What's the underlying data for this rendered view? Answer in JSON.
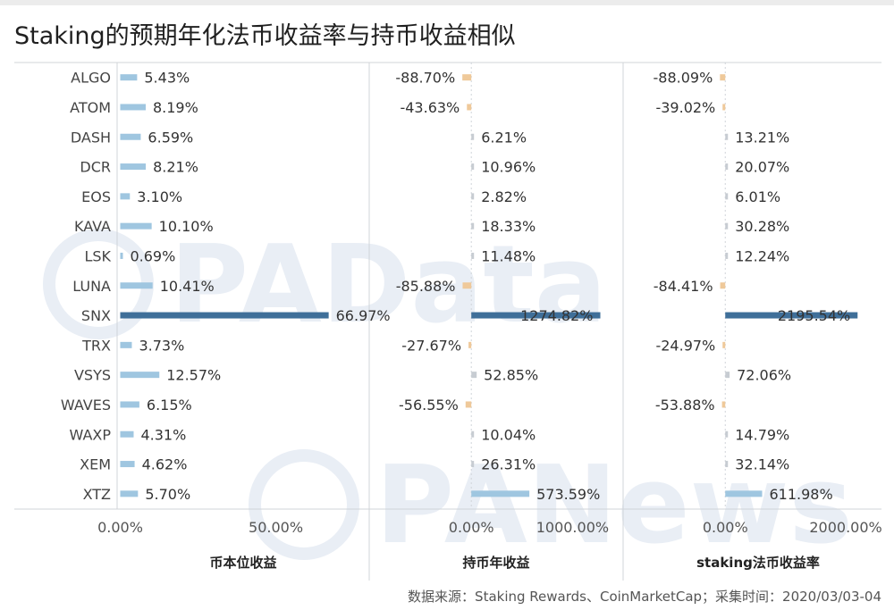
{
  "title": "Staking的预期年化法币收益率与持币收益相似",
  "source": "数据来源：Staking Rewards、CoinMarketCap；采集时间：2020/03/03-04",
  "watermarks": [
    "PAData",
    "PANews"
  ],
  "colors": {
    "positive_bar": "#9fc6e0",
    "negative_bar": "#efc99a",
    "highlight_bar": "#3f6f99",
    "small_bar_gray": "#c7ccd2",
    "grid": "#d0d4d9",
    "text": "#333333"
  },
  "chart_data": {
    "type": "bar",
    "orientation": "horizontal",
    "categories": [
      "ALGO",
      "ATOM",
      "DASH",
      "DCR",
      "EOS",
      "KAVA",
      "LSK",
      "LUNA",
      "SNX",
      "TRX",
      "VSYS",
      "WAVES",
      "WAXP",
      "XEM",
      "XTZ"
    ],
    "panels": [
      {
        "name": "币本位收益",
        "values": [
          5.43,
          8.19,
          6.59,
          8.21,
          3.1,
          10.1,
          0.69,
          10.41,
          66.97,
          3.73,
          12.57,
          6.15,
          4.31,
          4.62,
          5.7
        ],
        "labels": [
          "5.43%",
          "8.19%",
          "6.59%",
          "8.21%",
          "3.10%",
          "10.10%",
          "0.69%",
          "10.41%",
          "66.97%",
          "3.73%",
          "12.57%",
          "6.15%",
          "4.31%",
          "4.62%",
          "5.70%"
        ],
        "ticks": [
          "0.00%",
          "50.00%"
        ],
        "tick_values": [
          0,
          50
        ],
        "xlim": [
          -1,
          80
        ]
      },
      {
        "name": "持币年收益",
        "values": [
          -88.7,
          -43.63,
          6.21,
          10.96,
          2.82,
          18.33,
          11.48,
          -85.88,
          1274.82,
          -27.67,
          52.85,
          -56.55,
          10.04,
          26.31,
          573.59
        ],
        "labels": [
          "-88.70%",
          "-43.63%",
          "6.21%",
          "10.96%",
          "2.82%",
          "18.33%",
          "11.48%",
          "-85.88%",
          "1274.82%",
          "-27.67%",
          "52.85%",
          "-56.55%",
          "10.04%",
          "26.31%",
          "573.59%"
        ],
        "ticks": [
          "0.00%",
          "1000.00%"
        ],
        "tick_values": [
          0,
          1000
        ],
        "xlim": [
          -1000,
          1500
        ]
      },
      {
        "name": "staking法币收益率",
        "values": [
          -88.09,
          -39.02,
          13.21,
          20.07,
          6.01,
          30.28,
          12.24,
          -84.41,
          2195.54,
          -24.97,
          72.06,
          -53.88,
          14.79,
          32.14,
          611.98
        ],
        "labels": [
          "-88.09%",
          "-39.02%",
          "13.21%",
          "20.07%",
          "6.01%",
          "30.28%",
          "12.24%",
          "-84.41%",
          "2195.54%",
          "-24.97%",
          "72.06%",
          "-53.88%",
          "14.79%",
          "32.14%",
          "611.98%"
        ],
        "ticks": [
          "0.00%",
          "2000.00%"
        ],
        "tick_values": [
          0,
          2000
        ],
        "xlim": [
          -1680,
          2800
        ]
      }
    ],
    "highlight_category": "SNX",
    "grid": true,
    "legend": "none"
  }
}
